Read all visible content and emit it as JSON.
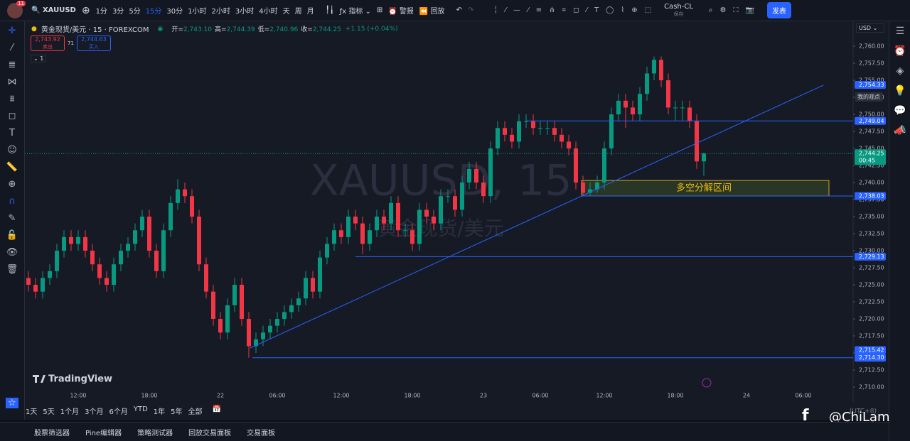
{
  "toolbar": {
    "avatar_badge": "11",
    "symbol": "XAUUSD",
    "intervals": [
      "1分",
      "3分",
      "5分",
      "15分",
      "30分",
      "1小时",
      "2小时",
      "3小时",
      "4小时",
      "天",
      "周",
      "月"
    ],
    "indicators": "指标",
    "alerts": "警报",
    "replay": "回放",
    "layout_name": "Cash-CL",
    "save": "保存",
    "publish": "发表"
  },
  "legend": {
    "instrument": "黄金现货/美元 · 15 · FOREXCOM",
    "ohlc": [
      {
        "label": "开=",
        "value": "2,743.10"
      },
      {
        "label": "高=",
        "value": "2,744.39"
      },
      {
        "label": "低=",
        "value": "2,740.96"
      },
      {
        "label": "收=",
        "value": "2,744.25"
      }
    ],
    "change": "+1.15 (+0.04%)",
    "indicator_count": "1"
  },
  "trade_buttons": {
    "sell_price": "2,743.92",
    "sell": "卖出",
    "spread": "71",
    "buy_price": "2,744.63",
    "buy": "买入"
  },
  "watermark": {
    "symbol": "XAUUSD, 15",
    "name": "黄金现货/美元"
  },
  "logo": "TradingView",
  "currency": "USD",
  "my_view": "我的观点",
  "ranges": [
    "1天",
    "5天",
    "1个月",
    "3个月",
    "6个月",
    "YTD",
    "1年",
    "5年",
    "全部"
  ],
  "bottom_tabs": [
    "股票筛选器",
    "Pine编辑器",
    "策略测试器",
    "回放交易面板",
    "交易面板"
  ],
  "timezone": "(UTC+8)",
  "overlay_credit": "@ChiLam",
  "chart_data": {
    "type": "candlestick",
    "categories": [
      null,
      null,
      null,
      null,
      null,
      null,
      null,
      "12:00",
      null,
      null,
      null,
      null,
      null,
      null,
      null,
      null,
      null,
      "18:00",
      null,
      null,
      null,
      null,
      null,
      null,
      null,
      null,
      null,
      "22",
      null,
      null,
      null,
      null,
      null,
      null,
      null,
      "06:00",
      null,
      null,
      null,
      null,
      null,
      null,
      null,
      null,
      "12:00",
      null,
      null,
      null,
      null,
      null,
      null,
      null,
      null,
      null,
      "18:00",
      null,
      null,
      null,
      null,
      null,
      null,
      null,
      null,
      null,
      "23",
      null,
      null,
      null,
      null,
      null,
      null,
      null,
      "06:00",
      null,
      null,
      null,
      null,
      null,
      null,
      null,
      null,
      "12:00",
      null,
      null,
      null,
      null,
      null,
      null,
      null,
      null,
      null,
      "18:00",
      null,
      null,
      null,
      null,
      null,
      null,
      null,
      null,
      null,
      "24",
      null,
      null,
      null,
      null,
      null,
      null,
      null,
      "06:00"
    ],
    "ohlc": [
      [
        2726,
        2727,
        2724,
        2725
      ],
      [
        2725,
        2726,
        2723,
        2724
      ],
      [
        2724,
        2727,
        2723,
        2726
      ],
      [
        2726,
        2728,
        2725,
        2727
      ],
      [
        2727,
        2731,
        2726,
        2730
      ],
      [
        2730,
        2733,
        2729,
        2732
      ],
      [
        2732,
        2733,
        2730,
        2731
      ],
      [
        2731,
        2733,
        2730,
        2732
      ],
      [
        2732,
        2733,
        2729,
        2730
      ],
      [
        2730,
        2731,
        2727,
        2728
      ],
      [
        2728,
        2729,
        2725,
        2726
      ],
      [
        2726,
        2727,
        2724,
        2725
      ],
      [
        2725,
        2729,
        2724,
        2728
      ],
      [
        2728,
        2731,
        2727,
        2730
      ],
      [
        2730,
        2732,
        2729,
        2731
      ],
      [
        2731,
        2734,
        2730,
        2733
      ],
      [
        2733,
        2736,
        2732,
        2735
      ],
      [
        2735,
        2736,
        2729,
        2730
      ],
      [
        2730,
        2731,
        2726,
        2727
      ],
      [
        2727,
        2734,
        2726,
        2733
      ],
      [
        2733,
        2738,
        2732,
        2737
      ],
      [
        2737,
        2740.5,
        2736,
        2739
      ],
      [
        2739,
        2740,
        2737,
        2738
      ],
      [
        2738,
        2739,
        2734,
        2735
      ],
      [
        2735,
        2736,
        2727,
        2728
      ],
      [
        2728,
        2729,
        2723,
        2724
      ],
      [
        2724,
        2725,
        2719,
        2720
      ],
      [
        2720,
        2721,
        2717,
        2718
      ],
      [
        2718,
        2723,
        2717,
        2722
      ],
      [
        2722,
        2726,
        2721,
        2725
      ],
      [
        2725,
        2726,
        2719,
        2720
      ],
      [
        2720,
        2721,
        2714.3,
        2716
      ],
      [
        2716,
        2718,
        2715,
        2717
      ],
      [
        2717,
        2719,
        2716,
        2718
      ],
      [
        2718,
        2720,
        2717,
        2719
      ],
      [
        2719,
        2721,
        2718,
        2720
      ],
      [
        2720,
        2722,
        2719,
        2721
      ],
      [
        2721,
        2723,
        2720,
        2722
      ],
      [
        2722,
        2724,
        2721,
        2723
      ],
      [
        2723,
        2727,
        2722,
        2726
      ],
      [
        2726,
        2727,
        2723,
        2724
      ],
      [
        2724,
        2730,
        2723,
        2729
      ],
      [
        2729,
        2732,
        2728,
        2731
      ],
      [
        2731,
        2734,
        2730,
        2733
      ],
      [
        2733,
        2734,
        2731,
        2732
      ],
      [
        2732,
        2736,
        2731,
        2735
      ],
      [
        2735,
        2736,
        2733,
        2734
      ],
      [
        2734,
        2735,
        2729.5,
        2731
      ],
      [
        2731,
        2734,
        2730,
        2733
      ],
      [
        2733,
        2736,
        2732,
        2735
      ],
      [
        2735,
        2736,
        2733,
        2734
      ],
      [
        2734,
        2738,
        2733,
        2737
      ],
      [
        2737,
        2738,
        2732,
        2733
      ],
      [
        2733,
        2734,
        2732,
        2733
      ],
      [
        2733,
        2734,
        2730,
        2731
      ],
      [
        2731,
        2737,
        2730,
        2736
      ],
      [
        2736,
        2737,
        2734,
        2735
      ],
      [
        2735,
        2736,
        2733,
        2734
      ],
      [
        2734,
        2739,
        2733,
        2738
      ],
      [
        2738,
        2739,
        2737,
        2738
      ],
      [
        2738,
        2739,
        2735,
        2736
      ],
      [
        2736,
        2741,
        2735,
        2740
      ],
      [
        2740,
        2743,
        2739,
        2742
      ],
      [
        2742,
        2743,
        2739,
        2740
      ],
      [
        2740,
        2741,
        2737,
        2738
      ],
      [
        2738,
        2746,
        2737,
        2745
      ],
      [
        2745,
        2749,
        2744,
        2748
      ],
      [
        2748,
        2749,
        2746,
        2747
      ],
      [
        2747,
        2748,
        2745,
        2746
      ],
      [
        2746,
        2750,
        2745,
        2749
      ],
      [
        2749,
        2750,
        2748,
        2749
      ],
      [
        2749,
        2750,
        2747,
        2748
      ],
      [
        2748,
        2749,
        2747,
        2748
      ],
      [
        2748,
        2749,
        2747,
        2748
      ],
      [
        2748,
        2749,
        2746,
        2747
      ],
      [
        2747,
        2748,
        2745,
        2746
      ],
      [
        2746,
        2747,
        2744,
        2745
      ],
      [
        2745,
        2746,
        2739,
        2740
      ],
      [
        2740,
        2741,
        2738,
        2738.5
      ],
      [
        2738.5,
        2740,
        2738,
        2739
      ],
      [
        2739,
        2741,
        2738.5,
        2740
      ],
      [
        2740,
        2746,
        2739,
        2745
      ],
      [
        2745,
        2751,
        2744,
        2750
      ],
      [
        2750,
        2753,
        2749,
        2752
      ],
      [
        2752,
        2753,
        2748,
        2751
      ],
      [
        2751,
        2752,
        2749,
        2750
      ],
      [
        2750,
        2754,
        2749,
        2753
      ],
      [
        2753,
        2757,
        2752,
        2756
      ],
      [
        2756,
        2758.5,
        2755,
        2758
      ],
      [
        2758,
        2758.5,
        2754,
        2755
      ],
      [
        2755,
        2756,
        2750,
        2751
      ],
      [
        2751,
        2752,
        2749,
        2751
      ],
      [
        2751,
        2752,
        2749,
        2751
      ],
      [
        2751,
        2752,
        2748,
        2749
      ],
      [
        2749,
        2750,
        2742,
        2743.1
      ],
      [
        2743.1,
        2744.39,
        2740.96,
        2744.25
      ],
      null,
      null,
      null,
      null,
      null,
      null,
      null,
      null,
      null,
      null,
      null,
      null,
      null,
      null
    ],
    "colors": {
      "up": "#089981",
      "down": "#f23645"
    },
    "ylim": [
      2709.69,
      2763.65
    ],
    "yticks": [
      {
        "value": 2710,
        "label": "2,710.00"
      },
      {
        "value": 2712.5,
        "label": "2,712.50"
      },
      {
        "value": 2715,
        "label": "2,715.00"
      },
      {
        "value": 2717.5,
        "label": "2,717.50"
      },
      {
        "value": 2720,
        "label": "2,720.00"
      },
      {
        "value": 2722.5,
        "label": "2,722.50"
      },
      {
        "value": 2725,
        "label": "2,725.00"
      },
      {
        "value": 2727.5,
        "label": "2,727.50"
      },
      {
        "value": 2730,
        "label": "2,730.00"
      },
      {
        "value": 2732.5,
        "label": "2,732.50"
      },
      {
        "value": 2735,
        "label": "2,735.00"
      },
      {
        "value": 2737.5,
        "label": "2,737.50"
      },
      {
        "value": 2740,
        "label": "2,740.00"
      },
      {
        "value": 2742.5,
        "label": "2,742.50"
      },
      {
        "value": 2745,
        "label": "2,745.00"
      },
      {
        "value": 2747.5,
        "label": "2,747.50"
      },
      {
        "value": 2750,
        "label": "2,750.00"
      },
      {
        "value": 2752.5,
        "label": "2,752.50"
      },
      {
        "value": 2755,
        "label": "2,755.00"
      },
      {
        "value": 2757.5,
        "label": "2,757.50"
      },
      {
        "value": 2760,
        "label": "2,760.00"
      }
    ],
    "grid": false,
    "last_price": {
      "value": 2744.25,
      "label": "2,744.25",
      "countdown": "00:45"
    },
    "price_lines": [
      {
        "value": 2754.33,
        "label": "2,754.33"
      },
      {
        "value": 2749.04,
        "label": "2,749.04"
      },
      {
        "value": 2738.03,
        "label": "2,738.03"
      },
      {
        "value": 2729.13,
        "label": "2,729.13"
      },
      {
        "value": 2715.42,
        "label": "2,715.42"
      },
      {
        "value": 2714.3,
        "label": "2,714.30"
      }
    ],
    "line_color": "#2962ff",
    "zone": {
      "high": 2740.3,
      "low": 2738.03,
      "label": "多空分解区间"
    }
  }
}
